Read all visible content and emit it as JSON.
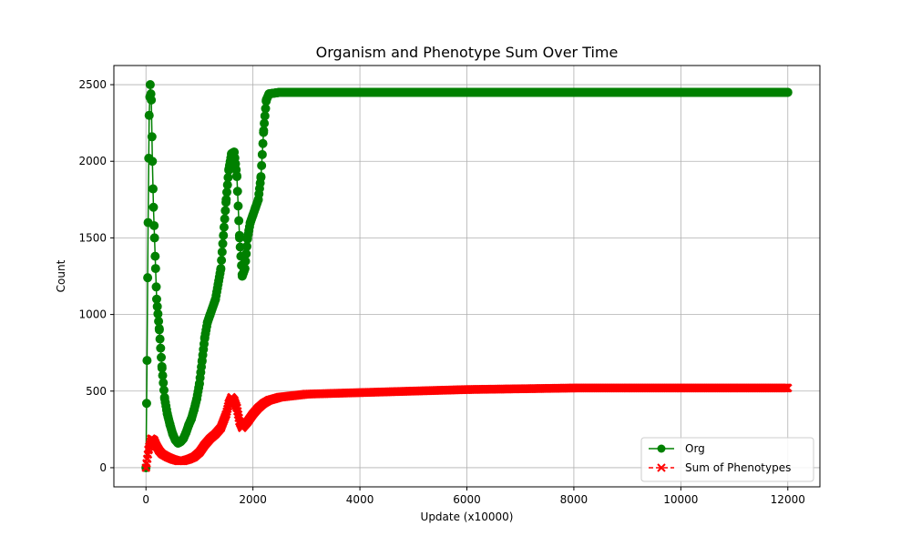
{
  "chart_data": {
    "type": "line",
    "title": "Organism and Phenotype Sum Over Time",
    "xlabel": "Update (x10000)",
    "ylabel": "Count",
    "xlim": [
      -600,
      12600
    ],
    "ylim": [
      -125,
      2625
    ],
    "xticks": [
      0,
      2000,
      4000,
      6000,
      8000,
      10000,
      12000
    ],
    "yticks": [
      0,
      500,
      1000,
      1500,
      2000,
      2500
    ],
    "grid": true,
    "legend_position": "lower-right",
    "series": [
      {
        "name": "Org",
        "color": "#008000",
        "marker": "circle",
        "linestyle": "solid",
        "x": [
          0,
          20,
          40,
          60,
          80,
          100,
          120,
          140,
          160,
          180,
          200,
          250,
          300,
          350,
          400,
          450,
          500,
          550,
          600,
          650,
          700,
          750,
          800,
          850,
          900,
          950,
          1000,
          1050,
          1100,
          1150,
          1200,
          1300,
          1400,
          1500,
          1550,
          1600,
          1650,
          1700,
          1750,
          1800,
          1850,
          1900,
          1950,
          2000,
          2050,
          2100,
          2150,
          2200,
          2250,
          2300,
          2500,
          3000,
          4000,
          5000,
          6000,
          7000,
          8000,
          9000,
          10000,
          11000,
          12000
        ],
        "y": [
          0,
          700,
          1600,
          2300,
          2500,
          2400,
          2000,
          1700,
          1500,
          1300,
          1100,
          900,
          650,
          450,
          350,
          280,
          220,
          180,
          160,
          170,
          190,
          230,
          280,
          320,
          380,
          450,
          550,
          700,
          850,
          950,
          1000,
          1100,
          1300,
          1750,
          1950,
          2050,
          2060,
          1900,
          1500,
          1250,
          1300,
          1500,
          1600,
          1650,
          1700,
          1750,
          1900,
          2200,
          2400,
          2440,
          2450,
          2450,
          2450,
          2450,
          2450,
          2450,
          2450,
          2450,
          2450,
          2450,
          2450
        ]
      },
      {
        "name": "Sum of Phenotypes",
        "color": "#ff0000",
        "marker": "x",
        "linestyle": "dashed",
        "x": [
          0,
          50,
          100,
          150,
          200,
          250,
          300,
          400,
          500,
          600,
          700,
          800,
          900,
          1000,
          1100,
          1200,
          1300,
          1400,
          1500,
          1550,
          1600,
          1650,
          1700,
          1750,
          1800,
          1900,
          2000,
          2100,
          2200,
          2300,
          2500,
          3000,
          4000,
          5000,
          6000,
          7000,
          8000,
          9000,
          10000,
          11000,
          12000
        ],
        "y": [
          0,
          120,
          190,
          180,
          140,
          110,
          90,
          70,
          55,
          45,
          45,
          55,
          70,
          100,
          150,
          190,
          220,
          260,
          350,
          420,
          460,
          440,
          390,
          300,
          260,
          300,
          350,
          390,
          420,
          440,
          460,
          480,
          490,
          500,
          510,
          515,
          520,
          520,
          520,
          520,
          520
        ]
      }
    ]
  }
}
